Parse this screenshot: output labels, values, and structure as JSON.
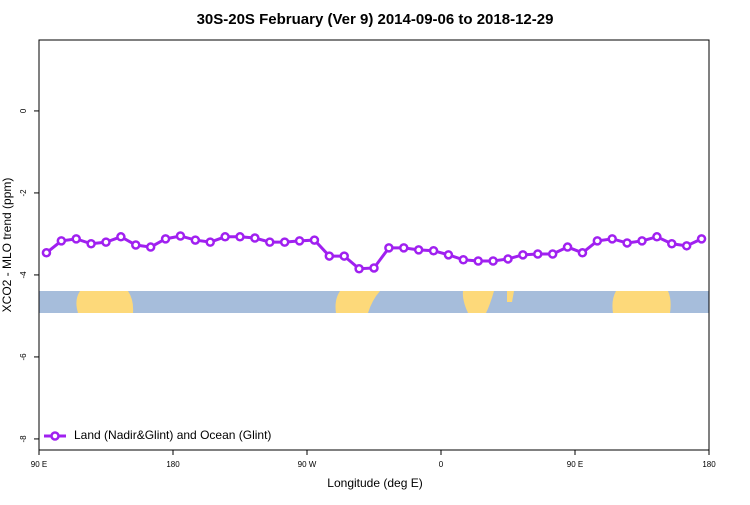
{
  "chart_data": {
    "type": "line",
    "title": "30S-20S February (Ver 9)   2014-09-06 to 2018-12-29",
    "x_label": "Longitude (deg E)",
    "y_label": "XCO2 - MLO trend (ppm)",
    "x": [
      95,
      105,
      115,
      125,
      135,
      145,
      155,
      165,
      175,
      185,
      195,
      205,
      215,
      225,
      235,
      245,
      255,
      265,
      275,
      285,
      295,
      305,
      315,
      325,
      335,
      345,
      355,
      365,
      375,
      385,
      395,
      405,
      415,
      425,
      435,
      445,
      455,
      465,
      475,
      485,
      495,
      505,
      515,
      525,
      535
    ],
    "series": [
      {
        "name": "Land (Nadir&Glint) and Ocean (Glint)",
        "color": "#a020f0",
        "values": [
          -3.46,
          -3.17,
          -3.12,
          -3.24,
          -3.2,
          -3.07,
          -3.27,
          -3.32,
          -3.12,
          -3.05,
          -3.15,
          -3.2,
          -3.07,
          -3.07,
          -3.1,
          -3.2,
          -3.2,
          -3.17,
          -3.15,
          -3.54,
          -3.54,
          -3.85,
          -3.83,
          -3.34,
          -3.34,
          -3.39,
          -3.41,
          -3.51,
          -3.63,
          -3.66,
          -3.66,
          -3.61,
          -3.51,
          -3.49,
          -3.49,
          -3.32,
          -3.46,
          -3.17,
          -3.12,
          -3.22,
          -3.17,
          -3.07,
          -3.24,
          -3.29,
          -3.12
        ]
      }
    ],
    "xlim": [
      90,
      540
    ],
    "xticks": [
      {
        "value": 90,
        "label": "90 E"
      },
      180,
      {
        "value": 270,
        "label": "90 W"
      },
      {
        "value": 360,
        "label": "0"
      },
      {
        "value": 450,
        "label": "90 E"
      },
      {
        "value": 540,
        "label": "180"
      }
    ],
    "ylim": [
      -8.27,
      1.73
    ],
    "yticks": [
      0,
      -2,
      -4,
      -6,
      -8
    ],
    "legend": "bottom-left"
  }
}
